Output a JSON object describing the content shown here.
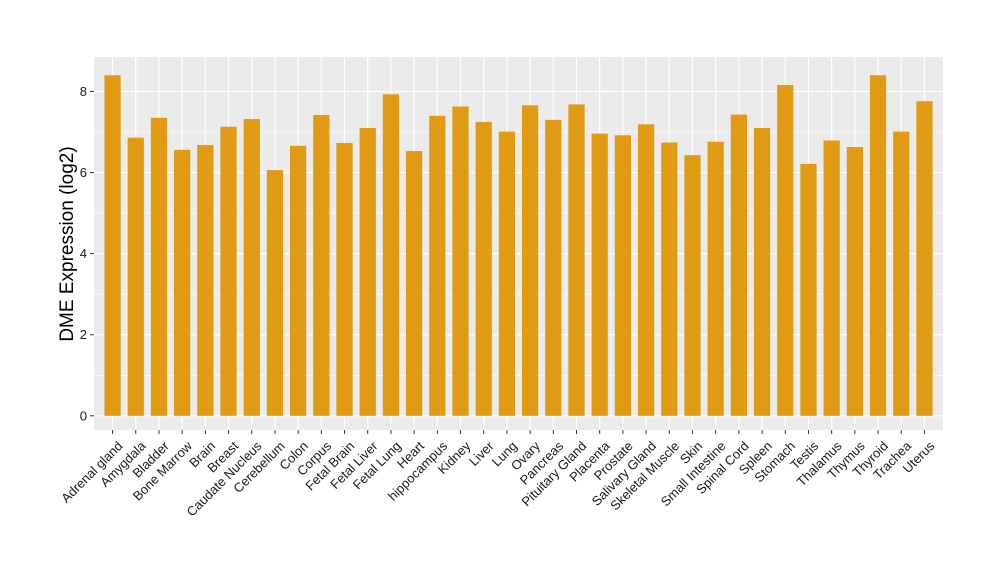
{
  "chart_data": {
    "type": "bar",
    "title": "",
    "xlabel": "",
    "ylabel": "DME Expression (log2)",
    "ylim": [
      -0.35,
      8.85
    ],
    "yticks": [
      0,
      2,
      4,
      6,
      8
    ],
    "grid": true,
    "legend": "none",
    "bar_color": "#E09A13",
    "panel_color": "#EBEBEB",
    "grid_color": "#FFFFFF",
    "categories": [
      "Adrenal gland",
      "Amygdala",
      "Bladder",
      "Bone Marrow",
      "Brain",
      "Breast",
      "Caudate Nucleus",
      "Cerebellum",
      "Colon",
      "Corpus",
      "Fetal Brain",
      "Fetal Liver",
      "Fetal Lung",
      "Heart",
      "hippocampus",
      "Kidney",
      "Liver",
      "Lung",
      "Ovary",
      "Pancreas",
      "Pituitary Gland",
      "Placenta",
      "Prostate",
      "Salivary Gland",
      "Skeletal Muscle",
      "Skin",
      "Small Intestine",
      "Spinal Cord",
      "Spleen",
      "Stomach",
      "Testis",
      "Thalamus",
      "Thymus",
      "Thyroid",
      "Trachea",
      "Uterus"
    ],
    "values": [
      8.4,
      6.86,
      7.35,
      6.56,
      6.68,
      7.13,
      7.32,
      6.06,
      6.66,
      7.42,
      6.73,
      7.1,
      7.93,
      6.53,
      7.4,
      7.63,
      7.25,
      7.01,
      7.66,
      7.3,
      7.68,
      6.96,
      6.92,
      7.19,
      6.74,
      6.43,
      6.76,
      7.43,
      7.1,
      8.16,
      6.21,
      6.79,
      6.63,
      8.4,
      7.01,
      7.76
    ]
  }
}
